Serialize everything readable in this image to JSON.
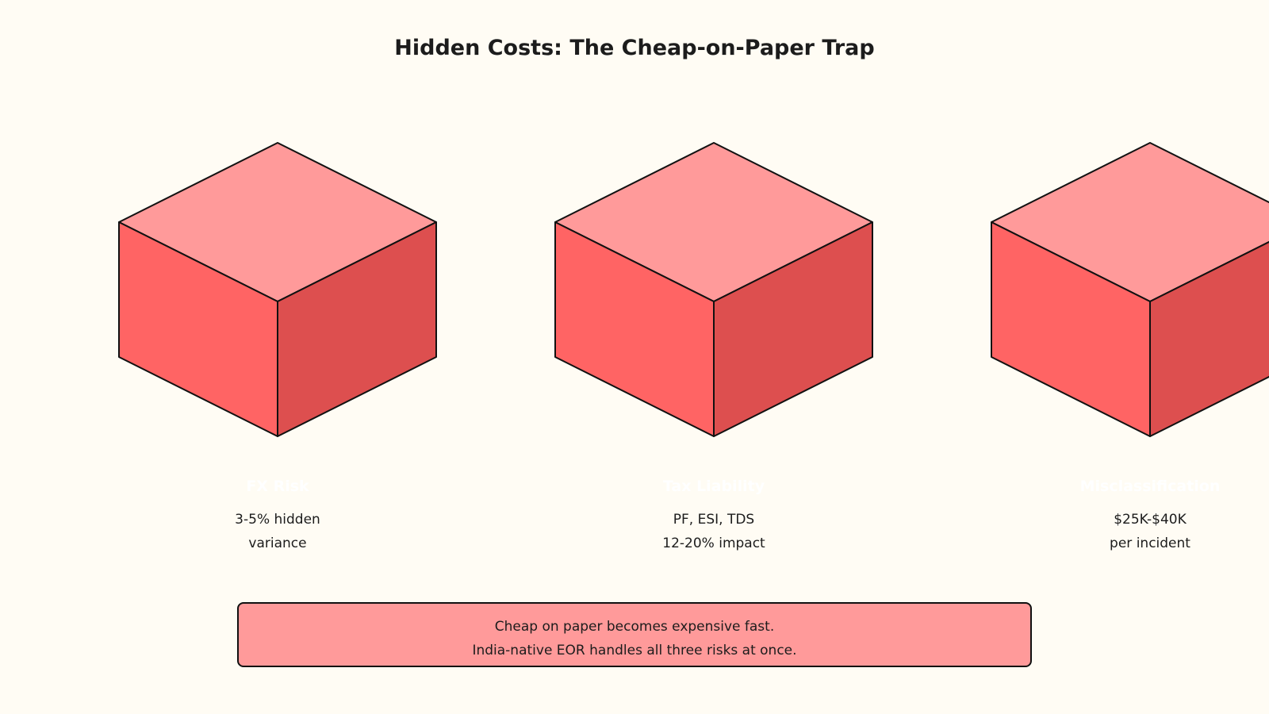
{
  "title": "Hidden Costs: The Cheap-on-Paper Trap",
  "colors": {
    "background": "#fffcf4",
    "cube_top": "#ff9a9a",
    "cube_left": "#ff6464",
    "cube_right": "#dd4f4f",
    "outline": "#111111",
    "banner_fill": "#ff9a9a",
    "text": "#1c1c1c",
    "label_text": "#ffffff"
  },
  "cubes": [
    {
      "label": "FX Risk",
      "desc_line1": "3-5% hidden",
      "desc_line2": "variance"
    },
    {
      "label": "Tax Liability",
      "desc_line1": "PF, ESI, TDS",
      "desc_line2": "12-20% impact"
    },
    {
      "label": "Misclassification",
      "desc_line1": "$25K-$40K",
      "desc_line2": "per incident"
    }
  ],
  "banner": {
    "line1": "Cheap on paper becomes expensive fast.",
    "line2": "India-native EOR handles all three risks at once."
  }
}
